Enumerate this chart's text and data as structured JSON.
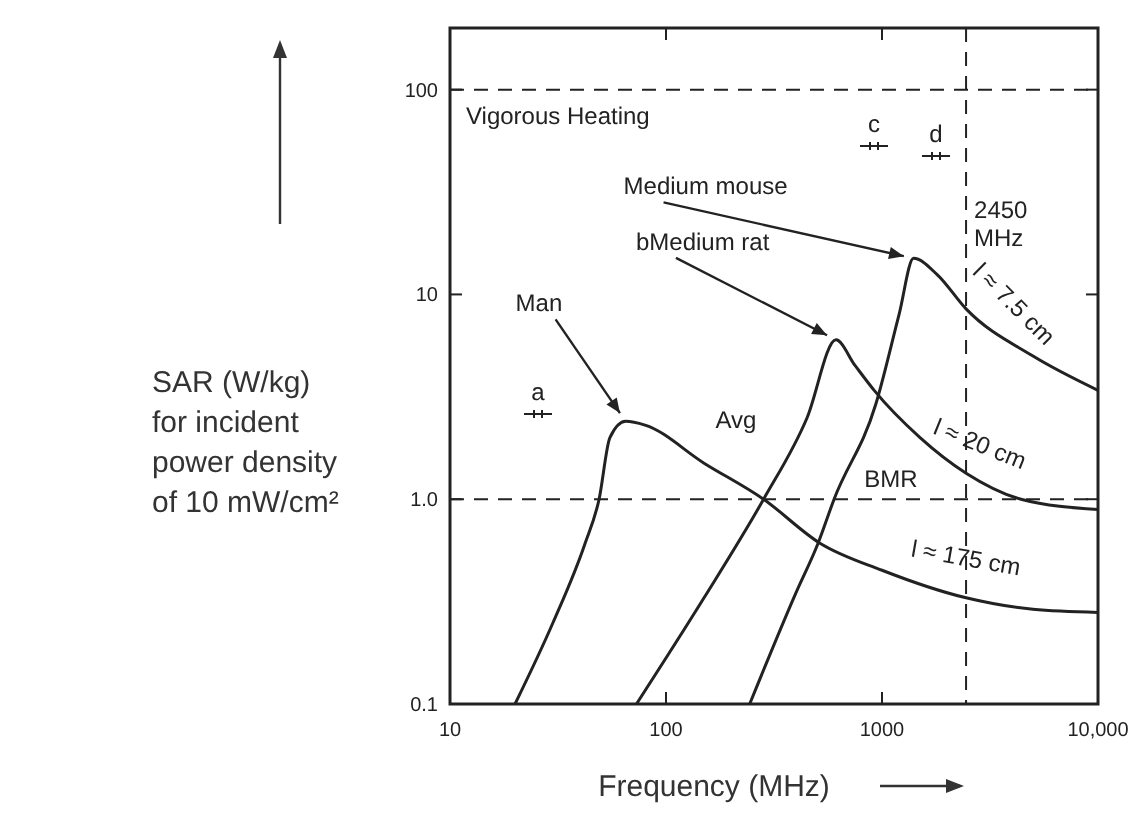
{
  "chart_data": {
    "type": "line",
    "xlabel": "Frequency (MHz)",
    "ylabel": "SAR (W/kg) for incident power density of 10 mW/cm²",
    "log": "xy",
    "xlim": [
      10,
      10000
    ],
    "ylim": [
      0.1,
      200
    ],
    "xticks": [
      10,
      100,
      1000,
      {
        "value": 10000,
        "label": "10,000"
      }
    ],
    "yticks": [
      0.1,
      {
        "value": 1,
        "label": "1.0"
      },
      10,
      100
    ],
    "grid": false,
    "marker": "none",
    "line_style": "solid",
    "series": [
      {
        "name": "Man",
        "color": "#222222",
        "x": [
          20,
          30,
          42,
          49,
          55,
          65,
          80,
          150,
          283,
          516,
          1000,
          2450,
          5000,
          10000
        ],
        "values": [
          0.1,
          0.25,
          0.6,
          1.0,
          2.0,
          2.4,
          2.3,
          1.5,
          1.0,
          0.61,
          0.45,
          0.33,
          0.29,
          0.28
        ]
      },
      {
        "name": "bMedium rat",
        "color": "#222222",
        "x": [
          73,
          150,
          283,
          450,
          612,
          750,
          920,
          1500,
          2450,
          4400,
          10000
        ],
        "values": [
          0.1,
          0.33,
          1.0,
          2.5,
          6.0,
          4.5,
          3.4,
          2.0,
          1.34,
          1.0,
          0.89
        ]
      },
      {
        "name": "Medium mouse",
        "color": "#222222",
        "x": [
          244,
          400,
          506,
          600,
          935,
          1200,
          1400,
          1800,
          2450,
          5000,
          10000
        ],
        "values": [
          0.1,
          0.35,
          0.61,
          1.0,
          2.9,
          8,
          15,
          12.5,
          8.5,
          5,
          3.4
        ]
      }
    ],
    "ref_lines": [
      {
        "axis": "y",
        "value": 100,
        "label": "Vigorous Heating",
        "line_style": "dashed"
      },
      {
        "axis": "y",
        "value": 1,
        "label": "BMR",
        "line_style": "dashed"
      },
      {
        "axis": "x",
        "value": 2450,
        "label": "2450 MHz",
        "line_style": "dashed"
      }
    ],
    "annotations": [
      "a",
      "c",
      "d",
      "Avg",
      "l ≈ 7.5 cm",
      "l ≈ 20 cm",
      "l ≈ 175 cm"
    ]
  }
}
